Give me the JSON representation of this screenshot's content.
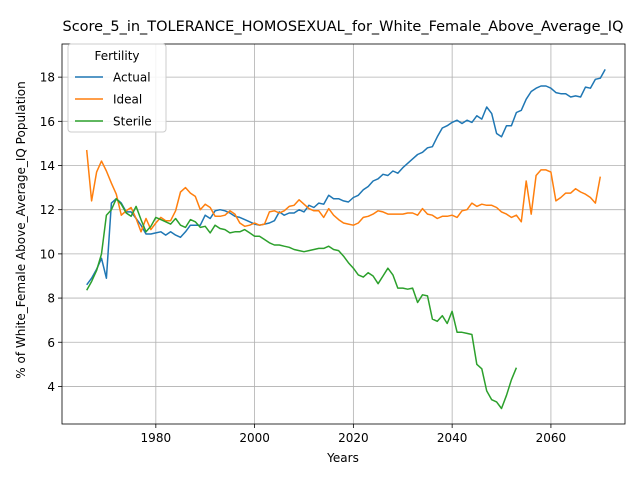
{
  "chart_data": {
    "type": "line",
    "title": "Score_5_in_TOLERANCE_HOMOSEXUAL_for_White_Female_Above_Average_IQ",
    "xlabel": "Years",
    "ylabel": "% of White_Female Above_Average_IQ Population",
    "xlim": [
      1961,
      2075
    ],
    "ylim": [
      2.3,
      19.5
    ],
    "x_ticks": [
      1980,
      2000,
      2020,
      2040,
      2060
    ],
    "x_tick_labels": [
      "1980",
      "2000",
      "2020",
      "2040",
      "2060"
    ],
    "y_ticks": [
      4,
      6,
      8,
      10,
      12,
      14,
      16,
      18
    ],
    "y_tick_labels": [
      "4",
      "6",
      "8",
      "10",
      "12",
      "14",
      "16",
      "18"
    ],
    "grid": true,
    "legend": {
      "title": "Fertility",
      "placement": "upper-left"
    },
    "series": [
      {
        "name": "Actual",
        "color": "#1f77b4",
        "points": [
          [
            1966,
            8.6
          ],
          [
            1967,
            8.9
          ],
          [
            1968,
            9.3
          ],
          [
            1969,
            9.8
          ],
          [
            1970,
            8.9
          ],
          [
            1971,
            12.3
          ],
          [
            1972,
            12.5
          ],
          [
            1973,
            12.3
          ],
          [
            1974,
            11.9
          ],
          [
            1975,
            11.9
          ],
          [
            1976,
            11.6
          ],
          [
            1977,
            11.3
          ],
          [
            1978,
            10.9
          ],
          [
            1979,
            10.9
          ],
          [
            1980,
            10.95
          ],
          [
            1981,
            11.0
          ],
          [
            1982,
            10.85
          ],
          [
            1983,
            11.0
          ],
          [
            1984,
            10.85
          ],
          [
            1985,
            10.75
          ],
          [
            1986,
            11.0
          ],
          [
            1987,
            11.3
          ],
          [
            1988,
            11.3
          ],
          [
            1989,
            11.3
          ],
          [
            1990,
            11.75
          ],
          [
            1991,
            11.6
          ],
          [
            1992,
            11.95
          ],
          [
            1993,
            12.0
          ],
          [
            1994,
            11.95
          ],
          [
            1995,
            11.85
          ],
          [
            1996,
            11.7
          ],
          [
            1997,
            11.65
          ],
          [
            1998,
            11.55
          ],
          [
            1999,
            11.45
          ],
          [
            2000,
            11.35
          ],
          [
            2001,
            11.3
          ],
          [
            2002,
            11.35
          ],
          [
            2003,
            11.4
          ],
          [
            2004,
            11.5
          ],
          [
            2005,
            11.9
          ],
          [
            2006,
            11.75
          ],
          [
            2007,
            11.85
          ],
          [
            2008,
            11.85
          ],
          [
            2009,
            12.0
          ],
          [
            2010,
            11.9
          ],
          [
            2011,
            12.2
          ],
          [
            2012,
            12.1
          ],
          [
            2013,
            12.3
          ],
          [
            2014,
            12.25
          ],
          [
            2015,
            12.65
          ],
          [
            2016,
            12.5
          ],
          [
            2017,
            12.5
          ],
          [
            2018,
            12.4
          ],
          [
            2019,
            12.35
          ],
          [
            2020,
            12.55
          ],
          [
            2021,
            12.65
          ],
          [
            2022,
            12.9
          ],
          [
            2023,
            13.05
          ],
          [
            2024,
            13.3
          ],
          [
            2025,
            13.4
          ],
          [
            2026,
            13.6
          ],
          [
            2027,
            13.55
          ],
          [
            2028,
            13.75
          ],
          [
            2029,
            13.65
          ],
          [
            2030,
            13.9
          ],
          [
            2031,
            14.1
          ],
          [
            2032,
            14.3
          ],
          [
            2033,
            14.5
          ],
          [
            2034,
            14.6
          ],
          [
            2035,
            14.8
          ],
          [
            2036,
            14.85
          ],
          [
            2037,
            15.3
          ],
          [
            2038,
            15.7
          ],
          [
            2039,
            15.8
          ],
          [
            2040,
            15.95
          ],
          [
            2041,
            16.05
          ],
          [
            2042,
            15.9
          ],
          [
            2043,
            16.05
          ],
          [
            2044,
            15.95
          ],
          [
            2045,
            16.25
          ],
          [
            2046,
            16.1
          ],
          [
            2047,
            16.65
          ],
          [
            2048,
            16.35
          ],
          [
            2049,
            15.45
          ],
          [
            2050,
            15.3
          ],
          [
            2051,
            15.8
          ],
          [
            2052,
            15.8
          ],
          [
            2053,
            16.4
          ],
          [
            2054,
            16.5
          ],
          [
            2055,
            17.0
          ],
          [
            2056,
            17.35
          ],
          [
            2057,
            17.5
          ],
          [
            2058,
            17.6
          ],
          [
            2059,
            17.6
          ],
          [
            2060,
            17.5
          ],
          [
            2061,
            17.3
          ],
          [
            2062,
            17.25
          ],
          [
            2063,
            17.25
          ],
          [
            2064,
            17.1
          ],
          [
            2065,
            17.15
          ],
          [
            2066,
            17.1
          ],
          [
            2067,
            17.55
          ],
          [
            2068,
            17.5
          ],
          [
            2069,
            17.9
          ],
          [
            2070,
            17.95
          ],
          [
            2071,
            18.35
          ]
        ]
      },
      {
        "name": "Ideal",
        "color": "#ff7f0e",
        "points": [
          [
            1966,
            14.7
          ],
          [
            1967,
            12.4
          ],
          [
            1968,
            13.7
          ],
          [
            1969,
            14.2
          ],
          [
            1970,
            13.75
          ],
          [
            1971,
            13.2
          ],
          [
            1972,
            12.7
          ],
          [
            1973,
            11.75
          ],
          [
            1974,
            11.95
          ],
          [
            1975,
            12.1
          ],
          [
            1976,
            11.6
          ],
          [
            1977,
            11.0
          ],
          [
            1978,
            11.6
          ],
          [
            1979,
            11.1
          ],
          [
            1980,
            11.4
          ],
          [
            1981,
            11.65
          ],
          [
            1982,
            11.5
          ],
          [
            1983,
            11.5
          ],
          [
            1984,
            11.95
          ],
          [
            1985,
            12.8
          ],
          [
            1986,
            13.0
          ],
          [
            1987,
            12.75
          ],
          [
            1988,
            12.6
          ],
          [
            1989,
            12.0
          ],
          [
            1990,
            12.25
          ],
          [
            1991,
            12.1
          ],
          [
            1992,
            11.7
          ],
          [
            1993,
            11.7
          ],
          [
            1994,
            11.75
          ],
          [
            1995,
            11.95
          ],
          [
            1996,
            11.8
          ],
          [
            1997,
            11.4
          ],
          [
            1998,
            11.25
          ],
          [
            1999,
            11.3
          ],
          [
            2000,
            11.4
          ],
          [
            2001,
            11.3
          ],
          [
            2002,
            11.35
          ],
          [
            2003,
            11.9
          ],
          [
            2004,
            11.95
          ],
          [
            2005,
            11.85
          ],
          [
            2006,
            11.95
          ],
          [
            2007,
            12.15
          ],
          [
            2008,
            12.2
          ],
          [
            2009,
            12.45
          ],
          [
            2010,
            12.25
          ],
          [
            2011,
            12.05
          ],
          [
            2012,
            11.95
          ],
          [
            2013,
            11.95
          ],
          [
            2014,
            11.65
          ],
          [
            2015,
            12.05
          ],
          [
            2016,
            11.75
          ],
          [
            2017,
            11.55
          ],
          [
            2018,
            11.4
          ],
          [
            2019,
            11.35
          ],
          [
            2020,
            11.3
          ],
          [
            2021,
            11.4
          ],
          [
            2022,
            11.65
          ],
          [
            2023,
            11.7
          ],
          [
            2024,
            11.8
          ],
          [
            2025,
            11.95
          ],
          [
            2026,
            11.9
          ],
          [
            2027,
            11.8
          ],
          [
            2028,
            11.8
          ],
          [
            2029,
            11.8
          ],
          [
            2030,
            11.8
          ],
          [
            2031,
            11.85
          ],
          [
            2032,
            11.85
          ],
          [
            2033,
            11.75
          ],
          [
            2034,
            12.05
          ],
          [
            2035,
            11.8
          ],
          [
            2036,
            11.75
          ],
          [
            2037,
            11.6
          ],
          [
            2038,
            11.7
          ],
          [
            2039,
            11.7
          ],
          [
            2040,
            11.75
          ],
          [
            2041,
            11.65
          ],
          [
            2042,
            11.95
          ],
          [
            2043,
            12.0
          ],
          [
            2044,
            12.3
          ],
          [
            2045,
            12.15
          ],
          [
            2046,
            12.25
          ],
          [
            2047,
            12.2
          ],
          [
            2048,
            12.2
          ],
          [
            2049,
            12.1
          ],
          [
            2050,
            11.9
          ],
          [
            2051,
            11.8
          ],
          [
            2052,
            11.65
          ],
          [
            2053,
            11.75
          ],
          [
            2054,
            11.45
          ],
          [
            2055,
            13.3
          ],
          [
            2056,
            11.8
          ],
          [
            2057,
            13.55
          ],
          [
            2058,
            13.8
          ],
          [
            2059,
            13.8
          ],
          [
            2060,
            13.7
          ],
          [
            2061,
            12.4
          ],
          [
            2062,
            12.55
          ],
          [
            2063,
            12.75
          ],
          [
            2064,
            12.75
          ],
          [
            2065,
            12.95
          ],
          [
            2066,
            12.8
          ],
          [
            2067,
            12.7
          ],
          [
            2068,
            12.55
          ],
          [
            2069,
            12.3
          ],
          [
            2070,
            13.5
          ]
        ]
      },
      {
        "name": "Sterile",
        "color": "#2ca02c",
        "points": [
          [
            1966,
            8.35
          ],
          [
            1967,
            8.75
          ],
          [
            1968,
            9.25
          ],
          [
            1969,
            10.0
          ],
          [
            1970,
            11.75
          ],
          [
            1971,
            12.0
          ],
          [
            1972,
            12.5
          ],
          [
            1973,
            12.25
          ],
          [
            1974,
            11.85
          ],
          [
            1975,
            11.7
          ],
          [
            1976,
            12.15
          ],
          [
            1977,
            11.55
          ],
          [
            1978,
            11.0
          ],
          [
            1979,
            11.25
          ],
          [
            1980,
            11.65
          ],
          [
            1981,
            11.55
          ],
          [
            1982,
            11.45
          ],
          [
            1983,
            11.35
          ],
          [
            1984,
            11.6
          ],
          [
            1985,
            11.3
          ],
          [
            1986,
            11.2
          ],
          [
            1987,
            11.55
          ],
          [
            1988,
            11.45
          ],
          [
            1989,
            11.2
          ],
          [
            1990,
            11.25
          ],
          [
            1991,
            10.95
          ],
          [
            1992,
            11.3
          ],
          [
            1993,
            11.15
          ],
          [
            1994,
            11.1
          ],
          [
            1995,
            10.95
          ],
          [
            1996,
            11.0
          ],
          [
            1997,
            11.0
          ],
          [
            1998,
            11.1
          ],
          [
            1999,
            10.95
          ],
          [
            2000,
            10.8
          ],
          [
            2001,
            10.8
          ],
          [
            2002,
            10.65
          ],
          [
            2003,
            10.5
          ],
          [
            2004,
            10.4
          ],
          [
            2005,
            10.4
          ],
          [
            2006,
            10.35
          ],
          [
            2007,
            10.3
          ],
          [
            2008,
            10.2
          ],
          [
            2009,
            10.15
          ],
          [
            2010,
            10.1
          ],
          [
            2011,
            10.15
          ],
          [
            2012,
            10.2
          ],
          [
            2013,
            10.25
          ],
          [
            2014,
            10.25
          ],
          [
            2015,
            10.35
          ],
          [
            2016,
            10.2
          ],
          [
            2017,
            10.15
          ],
          [
            2018,
            9.9
          ],
          [
            2019,
            9.6
          ],
          [
            2020,
            9.35
          ],
          [
            2021,
            9.05
          ],
          [
            2022,
            8.95
          ],
          [
            2023,
            9.15
          ],
          [
            2024,
            9.0
          ],
          [
            2025,
            8.65
          ],
          [
            2026,
            9.0
          ],
          [
            2027,
            9.35
          ],
          [
            2028,
            9.05
          ],
          [
            2029,
            8.45
          ],
          [
            2030,
            8.45
          ],
          [
            2031,
            8.4
          ],
          [
            2032,
            8.45
          ],
          [
            2033,
            7.8
          ],
          [
            2034,
            8.15
          ],
          [
            2035,
            8.1
          ],
          [
            2036,
            7.05
          ],
          [
            2037,
            6.95
          ],
          [
            2038,
            7.2
          ],
          [
            2039,
            6.85
          ],
          [
            2040,
            7.4
          ],
          [
            2041,
            6.45
          ],
          [
            2042,
            6.45
          ],
          [
            2043,
            6.4
          ],
          [
            2044,
            6.35
          ],
          [
            2045,
            5.0
          ],
          [
            2046,
            4.8
          ],
          [
            2047,
            3.8
          ],
          [
            2048,
            3.4
          ],
          [
            2049,
            3.3
          ],
          [
            2050,
            3.0
          ],
          [
            2051,
            3.6
          ],
          [
            2052,
            4.3
          ],
          [
            2053,
            4.85
          ]
        ]
      }
    ]
  }
}
